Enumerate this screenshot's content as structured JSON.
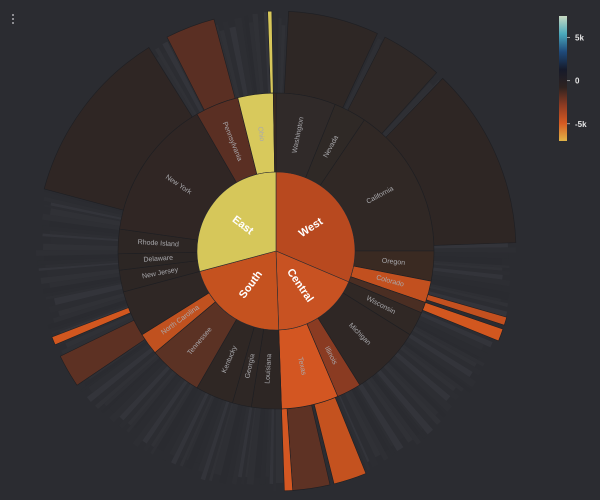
{
  "chart_data": {
    "type": "sunburst",
    "color_scale": {
      "ticks": [
        {
          "label": "5k",
          "value": 5000
        },
        {
          "label": "0",
          "value": 0
        },
        {
          "label": "-5k",
          "value": -5000
        }
      ],
      "colors": [
        "#c7d9c1",
        "#4aa9bc",
        "#1f4a7a",
        "#161a2a",
        "#2f2320",
        "#8e3b22",
        "#d65a22",
        "#e0b348"
      ]
    },
    "regions": [
      {
        "name": "West",
        "color": "#b8491f",
        "start": 0,
        "end": 113
      },
      {
        "name": "Central",
        "color": "#c85222",
        "start": 113,
        "end": 178
      },
      {
        "name": "South",
        "color": "#c5521f",
        "start": 178,
        "end": 255
      },
      {
        "name": "East",
        "color": "#d6c75a",
        "start": 255,
        "end": 360
      }
    ],
    "states": [
      {
        "name": "Washington",
        "start": 0,
        "end": 22,
        "color": "#302a29"
      },
      {
        "name": "Nevada",
        "start": 22,
        "end": 34,
        "color": "#2f2926"
      },
      {
        "name": "California",
        "start": 34,
        "end": 90,
        "color": "#302825"
      },
      {
        "name": "Oregon",
        "start": 90,
        "end": 101,
        "color": "#3a2a22"
      },
      {
        "name": "Colorado",
        "start": 101,
        "end": 109,
        "color": "#c2501f"
      },
      {
        "name": "",
        "start": 109,
        "end": 113,
        "color": "#4a2e23"
      },
      {
        "name": "Wisconsin",
        "start": 113,
        "end": 122,
        "color": "#302825"
      },
      {
        "name": "Michigan",
        "start": 122,
        "end": 148,
        "color": "#2f2725"
      },
      {
        "name": "Illinois",
        "start": 148,
        "end": 157,
        "color": "#8a3b22"
      },
      {
        "name": "Texas",
        "start": 157,
        "end": 178,
        "color": "#d35622"
      },
      {
        "name": "Louisiana",
        "start": 178,
        "end": 189,
        "color": "#2d2624"
      },
      {
        "name": "Georgia",
        "start": 189,
        "end": 196,
        "color": "#2e2725"
      },
      {
        "name": "Kentucky",
        "start": 196,
        "end": 210,
        "color": "#2f2724"
      },
      {
        "name": "Tennessee",
        "start": 210,
        "end": 230,
        "color": "#5b3224"
      },
      {
        "name": "North Carolina",
        "start": 230,
        "end": 238,
        "color": "#c0511f"
      },
      {
        "name": "",
        "start": 238,
        "end": 255,
        "color": "#2f2725"
      },
      {
        "name": "New Jersey",
        "start": 255,
        "end": 263,
        "color": "#2d2624"
      },
      {
        "name": "Delaware",
        "start": 263,
        "end": 269,
        "color": "#2c2624"
      },
      {
        "name": "Rhode Island",
        "start": 269,
        "end": 278,
        "color": "#2d2624"
      },
      {
        "name": "New York",
        "start": 278,
        "end": 330,
        "color": "#302624"
      },
      {
        "name": "Pennsylvania",
        "start": 330,
        "end": 346,
        "color": "#5a2f23"
      },
      {
        "name": "Ohio",
        "start": 346,
        "end": 359,
        "color": "#d8c95c"
      },
      {
        "name": "",
        "start": 359,
        "end": 360,
        "color": "#3a2a22"
      }
    ],
    "outer_highlights": [
      {
        "start": 3,
        "end": 25,
        "color": "#2e2725"
      },
      {
        "start": 27,
        "end": 42,
        "color": "#2f2826"
      },
      {
        "start": 44,
        "end": 88,
        "color": "#2e2624"
      },
      {
        "start": 106,
        "end": 108,
        "color": "#c3501f"
      },
      {
        "start": 109,
        "end": 112,
        "color": "#d2571f"
      },
      {
        "start": 158,
        "end": 166,
        "color": "#c4521f"
      },
      {
        "start": 167,
        "end": 176,
        "color": "#5e3224"
      },
      {
        "start": 176,
        "end": 178,
        "color": "#d45722"
      },
      {
        "start": 236,
        "end": 244,
        "color": "#5d3123"
      },
      {
        "start": 247,
        "end": 249,
        "color": "#d2571f"
      },
      {
        "start": 285,
        "end": 328,
        "color": "#2f2624"
      },
      {
        "start": 333,
        "end": 345,
        "color": "#5a2f23"
      },
      {
        "start": 358,
        "end": 359,
        "color": "#d7c75a"
      }
    ]
  }
}
